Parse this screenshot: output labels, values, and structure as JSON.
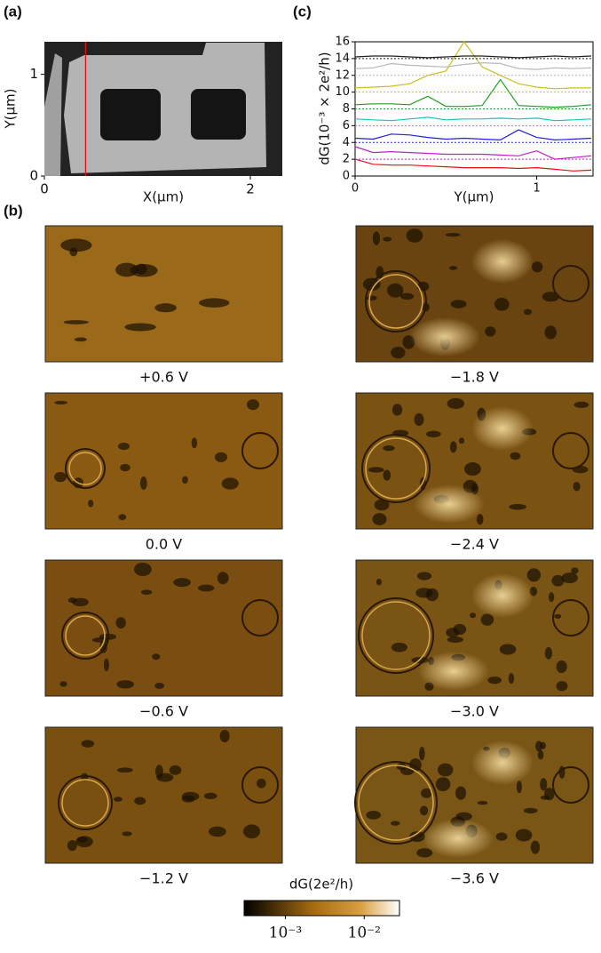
{
  "chart_data": [
    {
      "type": "image",
      "panel": "(a)",
      "xlabel": "X(µm)",
      "ylabel": "Y(µm)",
      "xlim": [
        0,
        2.31
      ],
      "ylim": [
        0,
        1.32
      ],
      "xticks": [
        0,
        2
      ],
      "yticks": [
        0,
        1
      ],
      "cut_x": 0.4,
      "cut_color": "#e01010"
    },
    {
      "type": "line",
      "panel": "(c)",
      "xlabel": "Y(µm)",
      "ylabel": "dG(10⁻³ × 2e²/h)",
      "xlim": [
        0,
        1.31
      ],
      "ylim": [
        0,
        16
      ],
      "xticks": [
        0,
        1
      ],
      "yticks": [
        0,
        2,
        4,
        6,
        8,
        10,
        12,
        14,
        16
      ],
      "x": [
        0,
        0.1,
        0.2,
        0.3,
        0.4,
        0.5,
        0.6,
        0.7,
        0.8,
        0.9,
        1.0,
        1.1,
        1.2,
        1.3
      ],
      "series": [
        {
          "color": "#e81010",
          "values": [
            2.0,
            1.4,
            1.3,
            1.3,
            1.2,
            1.1,
            1.0,
            1.0,
            1.0,
            0.9,
            1.0,
            0.8,
            0.6,
            0.7
          ]
        },
        {
          "color": "#c020c8",
          "baseline": 2,
          "values": [
            3.5,
            2.8,
            2.9,
            2.8,
            2.7,
            2.6,
            2.6,
            2.6,
            2.5,
            2.4,
            3.0,
            2.0,
            2.2,
            2.4
          ]
        },
        {
          "color": "#2020e0",
          "baseline": 4,
          "values": [
            4.5,
            4.4,
            5.0,
            4.9,
            4.6,
            4.4,
            4.5,
            4.4,
            4.3,
            5.5,
            4.6,
            4.3,
            4.4,
            4.5
          ]
        },
        {
          "color": "#20c0c0",
          "baseline": 6,
          "values": [
            6.8,
            6.7,
            6.6,
            6.8,
            7.0,
            6.7,
            6.8,
            6.8,
            6.9,
            6.8,
            6.9,
            6.6,
            6.7,
            6.8
          ]
        },
        {
          "color": "#20a020",
          "baseline": 8,
          "values": [
            8.5,
            8.6,
            8.6,
            8.5,
            9.5,
            8.3,
            8.3,
            8.4,
            11.5,
            8.4,
            8.3,
            8.2,
            8.3,
            8.5
          ]
        },
        {
          "color": "#c8c020",
          "baseline": 10,
          "values": [
            10.5,
            10.6,
            10.7,
            11.0,
            12.0,
            12.5,
            16.0,
            13.0,
            12.0,
            11.0,
            10.6,
            10.4,
            10.5,
            10.5
          ]
        },
        {
          "color": "#b8b8b8",
          "baseline": 12,
          "values": [
            12.8,
            12.9,
            13.4,
            13.2,
            13.1,
            13.0,
            13.3,
            13.5,
            13.4,
            12.8,
            12.7,
            12.9,
            12.8,
            12.9
          ]
        },
        {
          "color": "#202020",
          "baseline": 14,
          "values": [
            14.2,
            14.3,
            14.3,
            14.2,
            14.1,
            14.2,
            14.3,
            14.3,
            14.2,
            14.1,
            14.2,
            14.3,
            14.2,
            14.3
          ]
        }
      ]
    },
    {
      "type": "image-grid",
      "panel": "(b)",
      "maps": [
        "+0.6 V",
        "0.0 V",
        "−0.6 V",
        "−1.2 V",
        "−1.8 V",
        "−2.4 V",
        "−3.0 V",
        "−3.6 V"
      ],
      "colorbar": {
        "label": "dG(2e²/h)",
        "log": true,
        "clim": [
          0.0003,
          0.028
        ],
        "ticks": [
          {
            "value": 0.001,
            "label": "10⁻³"
          },
          {
            "value": 0.01,
            "label": "10⁻²"
          }
        ]
      }
    }
  ]
}
